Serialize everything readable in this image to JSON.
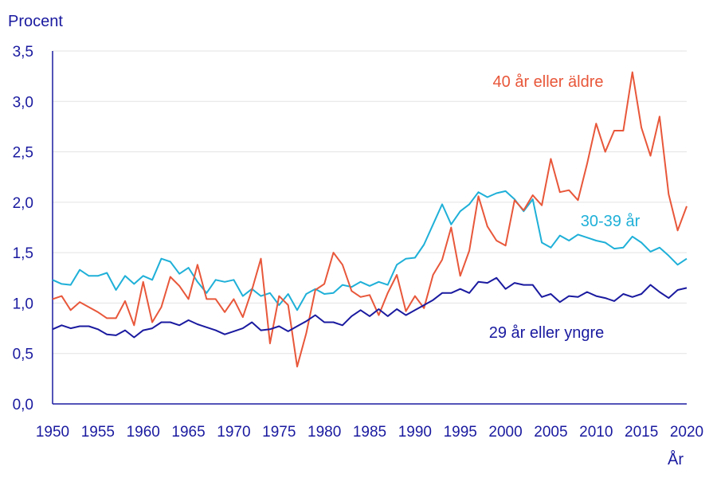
{
  "chart_data": {
    "type": "line",
    "ylabel": "Procent",
    "xlabel": "År",
    "ylim": [
      0,
      3.5
    ],
    "xlim": [
      1950,
      2020
    ],
    "grid": "horizontal",
    "y_ticks": [
      "0,0",
      "0,5",
      "1,0",
      "1,5",
      "2,0",
      "2,5",
      "3,0",
      "3,5"
    ],
    "y_tick_values": [
      0,
      0.5,
      1.0,
      1.5,
      2.0,
      2.5,
      3.0,
      3.5
    ],
    "x_ticks": [
      "1950",
      "1955",
      "1960",
      "1965",
      "1970",
      "1975",
      "1980",
      "1985",
      "1990",
      "1995",
      "2000",
      "2005",
      "2010",
      "2015",
      "2020"
    ],
    "x_tick_values": [
      1950,
      1955,
      1960,
      1965,
      1970,
      1975,
      1980,
      1985,
      1990,
      1995,
      2000,
      2005,
      2010,
      2015,
      2020
    ],
    "x": [
      1950,
      1951,
      1952,
      1953,
      1954,
      1955,
      1956,
      1957,
      1958,
      1959,
      1960,
      1961,
      1962,
      1963,
      1964,
      1965,
      1966,
      1967,
      1968,
      1969,
      1970,
      1971,
      1972,
      1973,
      1974,
      1975,
      1976,
      1977,
      1978,
      1979,
      1980,
      1981,
      1982,
      1983,
      1984,
      1985,
      1986,
      1987,
      1988,
      1989,
      1990,
      1991,
      1992,
      1993,
      1994,
      1995,
      1996,
      1997,
      1998,
      1999,
      2000,
      2001,
      2002,
      2003,
      2004,
      2005,
      2006,
      2007,
      2008,
      2009,
      2010,
      2011,
      2012,
      2013,
      2014,
      2015,
      2016,
      2017,
      2018,
      2019,
      2020
    ],
    "series": [
      {
        "name": "40 år eller äldre",
        "color": "#e8573a",
        "values": [
          1.04,
          1.07,
          0.93,
          1.01,
          0.96,
          0.91,
          0.85,
          0.85,
          1.02,
          0.78,
          1.21,
          0.81,
          0.96,
          1.26,
          1.17,
          1.04,
          1.38,
          1.04,
          1.04,
          0.91,
          1.04,
          0.86,
          1.13,
          1.44,
          0.6,
          1.07,
          0.98,
          0.37,
          0.7,
          1.13,
          1.19,
          1.5,
          1.38,
          1.12,
          1.06,
          1.08,
          0.88,
          1.1,
          1.28,
          0.92,
          1.07,
          0.95,
          1.28,
          1.43,
          1.75,
          1.27,
          1.52,
          2.06,
          1.76,
          1.62,
          1.57,
          2.02,
          1.92,
          2.07,
          1.97,
          2.43,
          2.1,
          2.12,
          2.02,
          2.38,
          2.78,
          2.5,
          2.71,
          2.71,
          3.29,
          2.74,
          2.46,
          2.85,
          2.08,
          1.72,
          1.96
        ]
      },
      {
        "name": "30-39 år",
        "color": "#1fb0d8",
        "values": [
          1.23,
          1.19,
          1.18,
          1.33,
          1.27,
          1.27,
          1.3,
          1.13,
          1.27,
          1.19,
          1.27,
          1.23,
          1.44,
          1.41,
          1.29,
          1.35,
          1.21,
          1.1,
          1.23,
          1.21,
          1.23,
          1.07,
          1.14,
          1.07,
          1.1,
          0.98,
          1.09,
          0.93,
          1.09,
          1.14,
          1.09,
          1.1,
          1.18,
          1.16,
          1.21,
          1.17,
          1.21,
          1.18,
          1.38,
          1.44,
          1.45,
          1.58,
          1.78,
          1.98,
          1.78,
          1.91,
          1.98,
          2.1,
          2.05,
          2.09,
          2.11,
          2.03,
          1.91,
          2.03,
          1.6,
          1.55,
          1.67,
          1.62,
          1.68,
          1.65,
          1.62,
          1.6,
          1.54,
          1.55,
          1.66,
          1.6,
          1.51,
          1.55,
          1.47,
          1.38,
          1.44
        ]
      },
      {
        "name": "29 år eller yngre",
        "color": "#1a1aa0",
        "values": [
          0.74,
          0.78,
          0.75,
          0.77,
          0.77,
          0.74,
          0.69,
          0.68,
          0.73,
          0.66,
          0.73,
          0.75,
          0.81,
          0.81,
          0.78,
          0.83,
          0.79,
          0.76,
          0.73,
          0.69,
          0.72,
          0.75,
          0.81,
          0.73,
          0.74,
          0.77,
          0.72,
          0.77,
          0.82,
          0.88,
          0.81,
          0.81,
          0.78,
          0.87,
          0.93,
          0.87,
          0.94,
          0.87,
          0.94,
          0.88,
          0.93,
          0.98,
          1.03,
          1.1,
          1.1,
          1.14,
          1.1,
          1.21,
          1.2,
          1.25,
          1.14,
          1.2,
          1.18,
          1.18,
          1.06,
          1.09,
          1.01,
          1.07,
          1.06,
          1.11,
          1.07,
          1.05,
          1.02,
          1.09,
          1.06,
          1.09,
          1.18,
          1.11,
          1.05,
          1.13,
          1.15
        ]
      }
    ],
    "annotations": [
      {
        "text": "40 år eller äldre",
        "series": 0,
        "color": "#e8573a"
      },
      {
        "text": "30-39 år",
        "series": 1,
        "color": "#1fb0d8"
      },
      {
        "text": "29 år eller yngre",
        "series": 2,
        "color": "#1a1aa0"
      }
    ]
  }
}
